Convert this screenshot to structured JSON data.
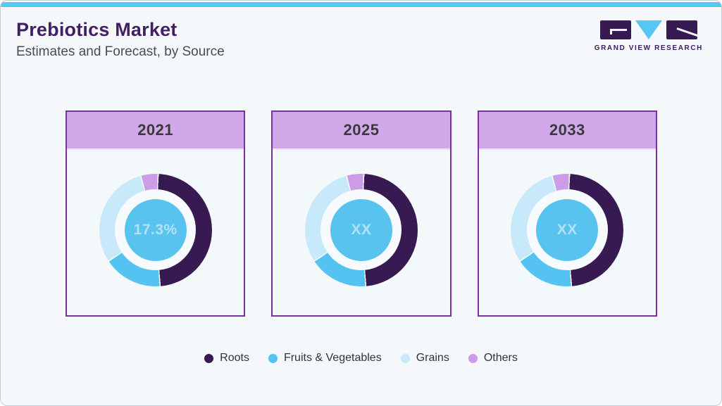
{
  "header": {
    "title": "Prebiotics Market",
    "subtitle": "Estimates and Forecast, by Source",
    "logo_text": "GRAND VIEW RESEARCH"
  },
  "legend": {
    "items": [
      {
        "label": "Roots",
        "color": "#371a52"
      },
      {
        "label": "Fruits & Vegetables",
        "color": "#55c3f1"
      },
      {
        "label": "Grains",
        "color": "#c7e9f9"
      },
      {
        "label": "Others",
        "color": "#cd9ce9"
      }
    ]
  },
  "chart_data": [
    {
      "type": "pie",
      "title": "2021",
      "center_label": "17.3%",
      "categories": [
        "Roots",
        "Fruits & Vegetables",
        "Grains",
        "Others"
      ],
      "values_pct": [
        48,
        17,
        30,
        5
      ]
    },
    {
      "type": "pie",
      "title": "2025",
      "center_label": "XX",
      "categories": [
        "Roots",
        "Fruits & Vegetables",
        "Grains",
        "Others"
      ],
      "values_pct": [
        48,
        17,
        30,
        5
      ]
    },
    {
      "type": "pie",
      "title": "2033",
      "center_label": "XX",
      "categories": [
        "Roots",
        "Fruits & Vegetables",
        "Grains",
        "Others"
      ],
      "values_pct": [
        48,
        17,
        30,
        5
      ]
    }
  ],
  "colors": {
    "accent_bar": "#56c7f3",
    "title_text": "#411f62",
    "card_border": "#7b2fa5",
    "card_header_bg": "#d1a8ea",
    "donut_hole": "#f7fbfd",
    "center_circle": "#58c3ef",
    "center_text": "#b3e1f6"
  }
}
